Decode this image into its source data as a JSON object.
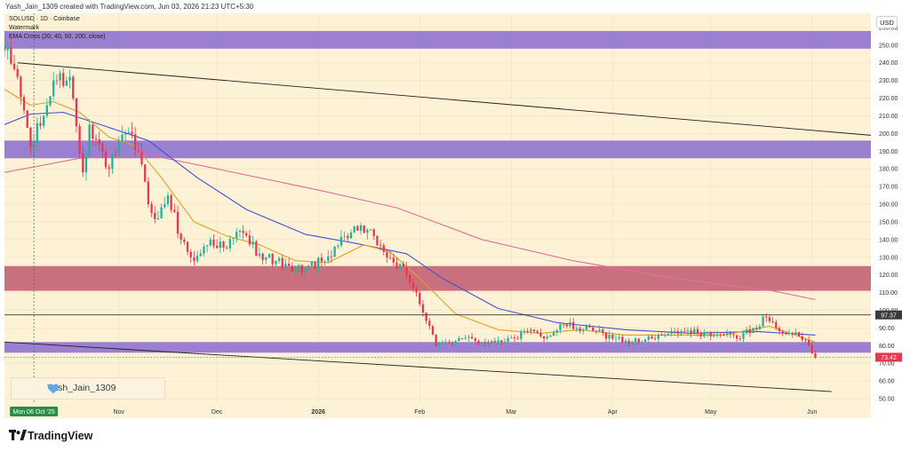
{
  "header": {
    "created_text": "Yash_Jain_1309 created with TradingView.com, Jun 03, 2026 21:23 UTC+5:30"
  },
  "legend": {
    "symbol": "SOLUSD · 1D · Coinbase",
    "watermark": "Watermark",
    "indicator": "EMA Cross (20, 40, 50, 200, close)"
  },
  "currency_button": "USD",
  "watermark_text": "Yash_Jain_1309",
  "brand": "TradingView",
  "colors": {
    "background": "#fdf1d6",
    "up_candle": "#1bb39c",
    "down_candle": "#e8364e",
    "ema_short": "#e4a11b",
    "ema_mid": "#3f51d6",
    "ema_long": "#e0709b",
    "purple_zone": "#9b7fd1",
    "red_zone": "#c9707f",
    "trendline": "#222222",
    "brand_heart": "#5aa9e6"
  },
  "chart_data": {
    "type": "candlestick",
    "title": "SOLUSD · 1D · Coinbase",
    "ylabel": "USD",
    "ylim": [
      47,
      268
    ],
    "y_ticks": [
      50,
      60,
      70,
      80,
      90,
      100,
      110,
      120,
      130,
      140,
      150,
      160,
      170,
      180,
      190,
      200,
      210,
      220,
      230,
      240,
      250,
      260
    ],
    "y_tick_labels": [
      "50.00",
      "60.00",
      "70.00",
      "80.00",
      "90.00",
      "100.00",
      "110.00",
      "120.00",
      "130.00",
      "140.00",
      "150.00",
      "160.00",
      "170.00",
      "180.00",
      "190.00",
      "200.00",
      "210.00",
      "220.00",
      "230.00",
      "240.00",
      "250.00",
      "260.00"
    ],
    "x_range": [
      "2025-09-27",
      "2026-06-19"
    ],
    "x_ticks": [
      {
        "label": "Nov",
        "date": "2025-11-01"
      },
      {
        "label": "Dec",
        "date": "2025-12-01"
      },
      {
        "label": "2026",
        "date": "2026-01-01"
      },
      {
        "label": "Feb",
        "date": "2026-02-01"
      },
      {
        "label": "Mar",
        "date": "2026-03-01"
      },
      {
        "label": "Apr",
        "date": "2026-04-01"
      },
      {
        "label": "May",
        "date": "2026-05-01"
      },
      {
        "label": "Jun",
        "date": "2026-06-01"
      }
    ],
    "crosshair": {
      "date": "2025-10-06",
      "label": "Mon 06 Oct '25"
    },
    "price_labels": [
      {
        "value": 97.37,
        "label": "97.37"
      },
      {
        "value": 73.42,
        "label": "73.42"
      }
    ],
    "zones": [
      {
        "from": 248,
        "to": 258,
        "color": "#9b7fd1"
      },
      {
        "from": 186,
        "to": 196,
        "color": "#9b7fd1"
      },
      {
        "from": 111,
        "to": 125,
        "color": "#c9707f"
      },
      {
        "from": 76,
        "to": 82,
        "color": "#9b7fd1"
      }
    ],
    "trendlines": [
      {
        "start": [
          "2025-10-01",
          240
        ],
        "end": [
          "2026-06-19",
          199
        ]
      },
      {
        "start": [
          "2025-09-27",
          82
        ],
        "end": [
          "2026-06-07",
          54
        ]
      }
    ],
    "candle_anchors": [
      {
        "date": "2025-09-27",
        "close": 247
      },
      {
        "date": "2025-10-01",
        "close": 232
      },
      {
        "date": "2025-10-05",
        "close": 192
      },
      {
        "date": "2025-10-09",
        "close": 210
      },
      {
        "date": "2025-10-12",
        "close": 230
      },
      {
        "date": "2025-10-17",
        "close": 232
      },
      {
        "date": "2025-10-21",
        "close": 178
      },
      {
        "date": "2025-10-23",
        "close": 205
      },
      {
        "date": "2025-10-29",
        "close": 180
      },
      {
        "date": "2025-11-03",
        "close": 200
      },
      {
        "date": "2025-11-07",
        "close": 190
      },
      {
        "date": "2025-11-10",
        "close": 160
      },
      {
        "date": "2025-11-13",
        "close": 152
      },
      {
        "date": "2025-11-16",
        "close": 165
      },
      {
        "date": "2025-11-20",
        "close": 140
      },
      {
        "date": "2025-11-24",
        "close": 128
      },
      {
        "date": "2025-11-29",
        "close": 140
      },
      {
        "date": "2025-12-04",
        "close": 135
      },
      {
        "date": "2025-12-08",
        "close": 145
      },
      {
        "date": "2025-12-14",
        "close": 132
      },
      {
        "date": "2025-12-19",
        "close": 128
      },
      {
        "date": "2025-12-24",
        "close": 122
      },
      {
        "date": "2025-12-28",
        "close": 124
      },
      {
        "date": "2026-01-03",
        "close": 128
      },
      {
        "date": "2026-01-06",
        "close": 136
      },
      {
        "date": "2026-01-09",
        "close": 142
      },
      {
        "date": "2026-01-13",
        "close": 145
      },
      {
        "date": "2026-01-18",
        "close": 142
      },
      {
        "date": "2026-01-21",
        "close": 133
      },
      {
        "date": "2026-01-24",
        "close": 127
      },
      {
        "date": "2026-01-28",
        "close": 120
      },
      {
        "date": "2026-01-31",
        "close": 110
      },
      {
        "date": "2026-02-03",
        "close": 94
      },
      {
        "date": "2026-02-06",
        "close": 80
      },
      {
        "date": "2026-02-09",
        "close": 82
      },
      {
        "date": "2026-02-14",
        "close": 84
      },
      {
        "date": "2026-02-20",
        "close": 82
      },
      {
        "date": "2026-02-25",
        "close": 83
      },
      {
        "date": "2026-03-02",
        "close": 84
      },
      {
        "date": "2026-03-06",
        "close": 88
      },
      {
        "date": "2026-03-12",
        "close": 85
      },
      {
        "date": "2026-03-17",
        "close": 92
      },
      {
        "date": "2026-03-21",
        "close": 90
      },
      {
        "date": "2026-03-27",
        "close": 88
      },
      {
        "date": "2026-04-02",
        "close": 84
      },
      {
        "date": "2026-04-07",
        "close": 82
      },
      {
        "date": "2026-04-13",
        "close": 84
      },
      {
        "date": "2026-04-17",
        "close": 86
      },
      {
        "date": "2026-04-23",
        "close": 88
      },
      {
        "date": "2026-04-29",
        "close": 87
      },
      {
        "date": "2026-05-04",
        "close": 86
      },
      {
        "date": "2026-05-09",
        "close": 84
      },
      {
        "date": "2026-05-14",
        "close": 90
      },
      {
        "date": "2026-05-18",
        "close": 96
      },
      {
        "date": "2026-05-21",
        "close": 90
      },
      {
        "date": "2026-05-25",
        "close": 87
      },
      {
        "date": "2026-05-30",
        "close": 83
      },
      {
        "date": "2026-06-02",
        "close": 73.42
      }
    ],
    "ema_20": [
      {
        "date": "2025-09-27",
        "value": 225
      },
      {
        "date": "2025-10-05",
        "value": 216
      },
      {
        "date": "2025-10-12",
        "value": 218
      },
      {
        "date": "2025-10-20",
        "value": 212
      },
      {
        "date": "2025-10-29",
        "value": 198
      },
      {
        "date": "2025-11-06",
        "value": 193
      },
      {
        "date": "2025-11-14",
        "value": 175
      },
      {
        "date": "2025-11-24",
        "value": 150
      },
      {
        "date": "2025-12-04",
        "value": 142
      },
      {
        "date": "2025-12-14",
        "value": 137
      },
      {
        "date": "2025-12-25",
        "value": 128
      },
      {
        "date": "2026-01-04",
        "value": 127
      },
      {
        "date": "2026-01-15",
        "value": 137
      },
      {
        "date": "2026-01-23",
        "value": 133
      },
      {
        "date": "2026-02-01",
        "value": 118
      },
      {
        "date": "2026-02-12",
        "value": 98
      },
      {
        "date": "2026-02-25",
        "value": 89
      },
      {
        "date": "2026-03-10",
        "value": 87
      },
      {
        "date": "2026-03-22",
        "value": 89
      },
      {
        "date": "2026-04-05",
        "value": 86
      },
      {
        "date": "2026-04-20",
        "value": 86
      },
      {
        "date": "2026-05-05",
        "value": 86
      },
      {
        "date": "2026-05-19",
        "value": 91
      },
      {
        "date": "2026-06-02",
        "value": 82
      }
    ],
    "ema_50": [
      {
        "date": "2025-09-27",
        "value": 205
      },
      {
        "date": "2025-10-05",
        "value": 211
      },
      {
        "date": "2025-10-15",
        "value": 212
      },
      {
        "date": "2025-10-28",
        "value": 204
      },
      {
        "date": "2025-11-10",
        "value": 196
      },
      {
        "date": "2025-11-25",
        "value": 175
      },
      {
        "date": "2025-12-10",
        "value": 157
      },
      {
        "date": "2025-12-28",
        "value": 143
      },
      {
        "date": "2026-01-12",
        "value": 138
      },
      {
        "date": "2026-01-28",
        "value": 132
      },
      {
        "date": "2026-02-08",
        "value": 118
      },
      {
        "date": "2026-02-25",
        "value": 101
      },
      {
        "date": "2026-03-15",
        "value": 93
      },
      {
        "date": "2026-04-05",
        "value": 89
      },
      {
        "date": "2026-04-25",
        "value": 87
      },
      {
        "date": "2026-05-15",
        "value": 88
      },
      {
        "date": "2026-06-02",
        "value": 86
      }
    ],
    "ema_200": [
      {
        "date": "2025-09-27",
        "value": 178
      },
      {
        "date": "2025-10-20",
        "value": 186
      },
      {
        "date": "2025-11-10",
        "value": 188
      },
      {
        "date": "2025-12-01",
        "value": 180
      },
      {
        "date": "2026-01-01",
        "value": 168
      },
      {
        "date": "2026-01-25",
        "value": 158
      },
      {
        "date": "2026-02-20",
        "value": 140
      },
      {
        "date": "2026-03-20",
        "value": 128
      },
      {
        "date": "2026-04-20",
        "value": 118
      },
      {
        "date": "2026-05-20",
        "value": 111
      },
      {
        "date": "2026-06-02",
        "value": 106
      }
    ]
  }
}
